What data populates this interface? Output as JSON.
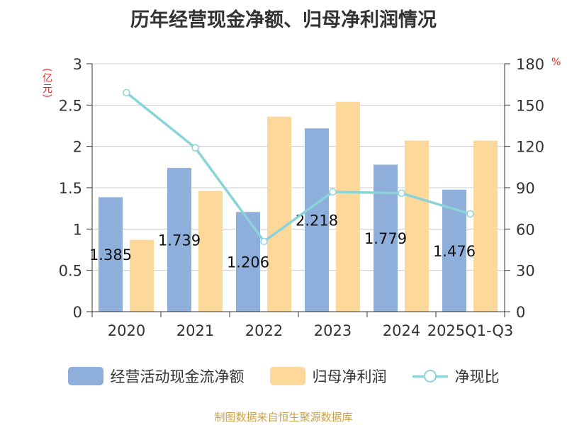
{
  "title": "历年经营现金净额、归母净利润情况",
  "unit_left": "(亿元)",
  "unit_right": "%",
  "source": "制图数据来自恒生聚源数据库",
  "colors": {
    "bar1": "#8eaedb",
    "bar2": "#fdd89b",
    "line": "#8ad3d9",
    "unit": "#e0292a",
    "source": "#c9a14a"
  },
  "chart_data": {
    "type": "bar",
    "title": "历年经营现金净额、归母净利润情况",
    "categories": [
      "2020",
      "2021",
      "2022",
      "2023",
      "2024",
      "2025Q1-Q3"
    ],
    "series": [
      {
        "name": "经营活动现金流净额",
        "type": "bar",
        "axis": "left",
        "values": [
          1.385,
          1.739,
          1.206,
          2.218,
          1.779,
          1.476
        ],
        "labels": [
          "1.385",
          "1.739",
          "1.206",
          "2.218",
          "1.779",
          "1.476"
        ]
      },
      {
        "name": "归母净利润",
        "type": "bar",
        "axis": "left",
        "values": [
          0.87,
          1.46,
          2.36,
          2.54,
          2.07,
          2.07
        ]
      },
      {
        "name": "净现比",
        "type": "line",
        "axis": "right",
        "values": [
          159,
          119,
          51,
          87,
          86,
          71
        ]
      }
    ],
    "yleft": {
      "ylim": [
        0,
        3
      ],
      "ticks": [
        "0",
        "0.5",
        "1",
        "1.5",
        "2",
        "2.5",
        "3"
      ]
    },
    "yright": {
      "ylim": [
        0,
        180
      ],
      "ticks": [
        "0",
        "30",
        "60",
        "90",
        "120",
        "150",
        "180"
      ]
    },
    "grid": true,
    "legend": "bottom"
  }
}
